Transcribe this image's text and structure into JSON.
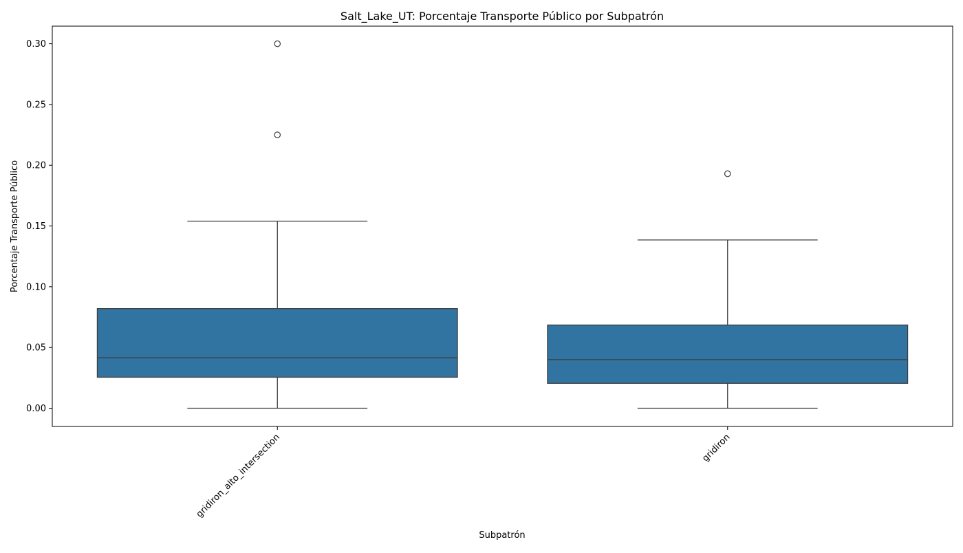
{
  "chart_data": {
    "type": "box",
    "title": "Salt_Lake_UT: Porcentaje Transporte Público por Subpatrón",
    "xlabel": "Subpatrón",
    "ylabel": "Porcentaje Transporte Público",
    "ylim": [
      -0.015,
      0.3145
    ],
    "yticks": [
      0.0,
      0.05,
      0.1,
      0.15,
      0.2,
      0.25,
      0.3
    ],
    "ytick_labels": [
      "0.00",
      "0.05",
      "0.10",
      "0.15",
      "0.20",
      "0.25",
      "0.30"
    ],
    "grid": false,
    "legend": "none",
    "colors": {
      "box_fill": "#3274a1",
      "line": "#3d3d3d"
    },
    "categories": [
      "gridiron_alto_intersection",
      "gridiron"
    ],
    "boxes": [
      {
        "category": "gridiron_alto_intersection",
        "whisker_low": 0.0,
        "q1": 0.0255,
        "median": 0.0415,
        "q3": 0.082,
        "whisker_high": 0.154,
        "outliers": [
          0.225,
          0.3
        ]
      },
      {
        "category": "gridiron",
        "whisker_low": 0.0,
        "q1": 0.0205,
        "median": 0.04,
        "q3": 0.0685,
        "whisker_high": 0.1385,
        "outliers": [
          0.193
        ]
      }
    ]
  }
}
